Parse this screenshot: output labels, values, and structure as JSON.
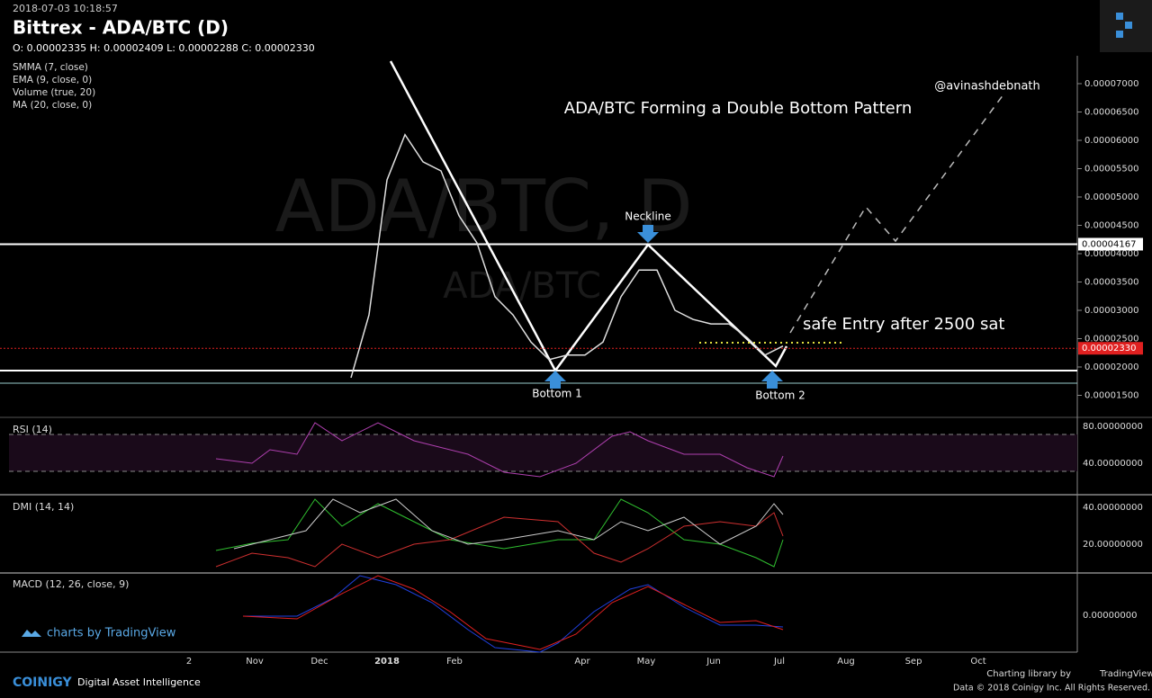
{
  "header": {
    "timestamp": "2018-07-03 10:18:57",
    "title": "Bittrex - ADA/BTC (D)",
    "ohlc": "O: 0.00002335 H: 0.00002409 L: 0.00002288 C: 0.00002330"
  },
  "studies": [
    "SMMA (7, close)",
    "EMA (9, close, 0)",
    "Volume (true, 20)",
    "MA (20, close, 0)"
  ],
  "chart_data": {
    "type": "line",
    "watermark": "ADA/BTC, D",
    "watermark_sub": "ADA/BTC",
    "categories": [
      null,
      null,
      null,
      null,
      null,
      null,
      null,
      null,
      null,
      null,
      null,
      null,
      null,
      null,
      null,
      null,
      null,
      null,
      null,
      null,
      null,
      null,
      null,
      null,
      null
    ],
    "values": [
      1.81e-05,
      2.92e-05,
      5.3e-05,
      6.1e-05,
      5.62e-05,
      5.46e-05,
      4.67e-05,
      4.19e-05,
      3.24e-05,
      2.92e-05,
      2.44e-05,
      2.13e-05,
      2.21e-05,
      2.21e-05,
      2.44e-05,
      3.24e-05,
      3.71e-05,
      3.71e-05,
      3e-05,
      2.84e-05,
      2.76e-05,
      2.76e-05,
      2.52e-05,
      2.21e-05,
      2.37e-05
    ],
    "color": "#e0e0e0",
    "ylim": [
      1.127e-05,
      7.492e-05
    ],
    "yticks": [
      {
        "value": 1.5e-05,
        "label": "0.00001500"
      },
      {
        "value": 2e-05,
        "label": "0.00002000"
      },
      {
        "value": 2.5e-05,
        "label": "0.00002500"
      },
      {
        "value": 3e-05,
        "label": "0.00003000"
      },
      {
        "value": 3.5e-05,
        "label": "0.00003500"
      },
      {
        "value": 4e-05,
        "label": "0.00004000"
      },
      {
        "value": 4.5e-05,
        "label": "0.00004500"
      },
      {
        "value": 5e-05,
        "label": "0.00005000"
      },
      {
        "value": 5.5e-05,
        "label": "0.00005500"
      },
      {
        "value": 6e-05,
        "label": "0.00006000"
      },
      {
        "value": 6.5e-05,
        "label": "0.00006500"
      },
      {
        "value": 7e-05,
        "label": "0.00007000"
      }
    ],
    "price_lines": [
      {
        "value": 4.167e-05,
        "label": "0.00004167",
        "color": "#ffffff"
      },
      {
        "value": 2.33e-05,
        "label": "0.00002330",
        "color": "#e02020"
      }
    ],
    "x_labels": [
      "2",
      "Nov",
      "Dec",
      "2018",
      "Feb",
      "Apr",
      "May",
      "Jun",
      "Jul",
      "Aug",
      "Sep",
      "Oct"
    ]
  },
  "annotations": {
    "title": "ADA/BTC  Forming a Double Bottom Pattern",
    "author": "@avinashdebnath",
    "neckline": "Neckline",
    "bottom1": "Bottom 1",
    "bottom2": "Bottom 2",
    "entry": "safe Entry after 2500 sat"
  },
  "panes": [
    {
      "name": "RSI (14)",
      "ticks": [
        "80.00000000",
        "40.00000000"
      ]
    },
    {
      "name": "DMI (14, 14)",
      "ticks": [
        "40.00000000",
        "20.00000000"
      ]
    },
    {
      "name": "MACD (12, 26, close, 9)",
      "ticks": [
        "0.00000000"
      ]
    }
  ],
  "footer": {
    "tv": "charts by TradingView",
    "brand": "COINIGY",
    "tagline": "Digital Asset Intelligence",
    "lib": "Charting library by",
    "tv2": "TradingView",
    "copyright": "Data © 2018  Coinigy Inc. All Rights Reserved."
  }
}
